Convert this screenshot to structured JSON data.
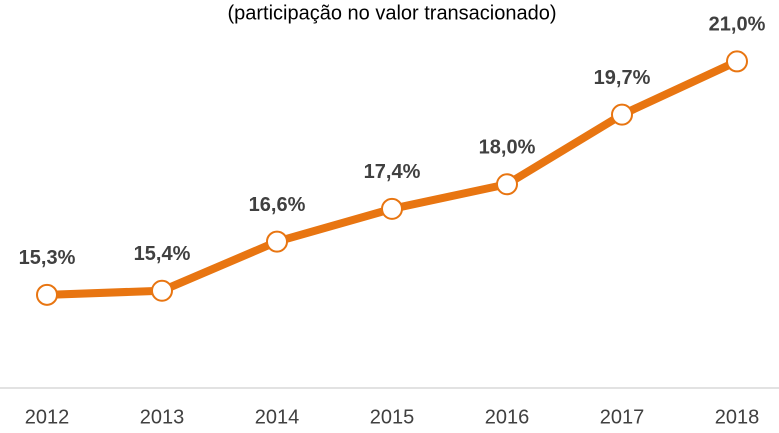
{
  "chart_data": {
    "type": "line",
    "title": "(participação no valor transacionado)",
    "categories": [
      "2012",
      "2013",
      "2014",
      "2015",
      "2016",
      "2017",
      "2018"
    ],
    "values": [
      15.3,
      15.4,
      16.6,
      17.4,
      18.0,
      19.7,
      21.0
    ],
    "value_labels": [
      "15,3%",
      "15,4%",
      "16,6%",
      "17,4%",
      "18,0%",
      "19,7%",
      "21,0%"
    ],
    "color": "#e87511",
    "ylim": [
      13,
      22.5
    ]
  }
}
